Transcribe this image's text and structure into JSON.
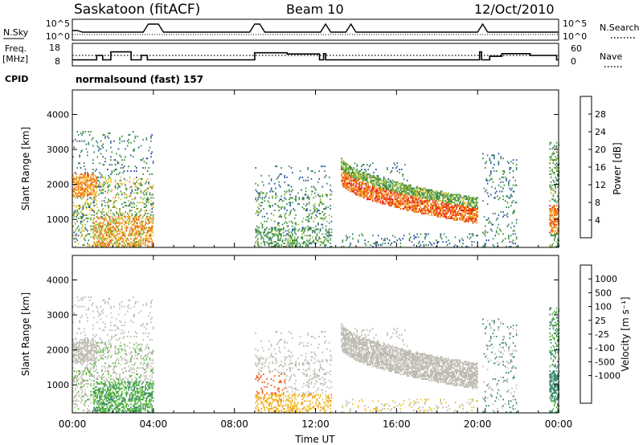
{
  "header": {
    "station": "Saskatoon (fitACF)",
    "beam": "Beam 10",
    "date": "12/Oct/2010"
  },
  "top_panel": {
    "nsky_label": "N.Sky",
    "nsky_ticks": [
      "10^5",
      "10^0"
    ],
    "nsearch_label": "N.Search",
    "freq_label_1": "Freq.",
    "freq_label_2": "[MHz]",
    "freq_ticks": [
      "18",
      "8"
    ],
    "nave_ticks": [
      "60",
      "0"
    ],
    "nave_label": "Nave",
    "cpid_label": "CPID",
    "cpid_value": "normalsound (fast) 157"
  },
  "colors": {
    "power_scale": [
      "#1a2bd6",
      "#2d4fa8",
      "#3a8a5a",
      "#3c8f3c",
      "#8fbc3c",
      "#f2c12e",
      "#f08c1c",
      "#ee5a10",
      "#e8201a"
    ],
    "velocity_scale": [
      "#1a3cc8",
      "#2f6aa8",
      "#3a8a6a",
      "#55b83a",
      "#bebcb2",
      "#bebcb2",
      "#f0c02a",
      "#f08c1c",
      "#ef5a14",
      "#e8201a"
    ]
  },
  "chart_data": [
    {
      "type": "heatmap",
      "name": "power",
      "ylabel": "Slant Range [km]",
      "yticks": [
        "1000",
        "2000",
        "3000",
        "4000"
      ],
      "ylim": [
        200,
        4700
      ],
      "xlim": [
        0,
        24
      ],
      "colorbar_label": "Power [dB]",
      "colorbar_ticks": [
        "4",
        "8",
        "12",
        "16",
        "20",
        "24",
        "28"
      ],
      "colorbar_range": [
        0,
        32
      ],
      "scatter_regions": [
        {
          "t": [
            0.0,
            4.0
          ],
          "range_km": [
            200,
            3500
          ],
          "peak_db": 26
        },
        {
          "t": [
            9.0,
            12.8
          ],
          "range_km": [
            200,
            2500
          ],
          "peak_db": 18
        },
        {
          "t": [
            13.2,
            20.0
          ],
          "range_km": [
            200,
            2600
          ],
          "peak_db": 30
        },
        {
          "t": [
            20.2,
            21.9
          ],
          "range_km": [
            200,
            2900
          ],
          "peak_db": 16
        },
        {
          "t": [
            23.5,
            24.0
          ],
          "range_km": [
            500,
            3200
          ],
          "peak_db": 28
        }
      ]
    },
    {
      "type": "heatmap",
      "name": "velocity",
      "ylabel": "Slant Range [km]",
      "yticks": [
        "1000",
        "2000",
        "3000",
        "4000"
      ],
      "ylim": [
        200,
        4700
      ],
      "xlim": [
        0,
        24
      ],
      "xticks": [
        "00:00",
        "04:00",
        "08:00",
        "12:00",
        "16:00",
        "20:00",
        "00:00"
      ],
      "xlabel": "Time UT",
      "colorbar_label": "Velocity [m s⁻¹]",
      "colorbar_ticks": [
        "1000",
        "500",
        "100",
        "25",
        "-25",
        "-100",
        "-500",
        "-1000"
      ]
    }
  ]
}
